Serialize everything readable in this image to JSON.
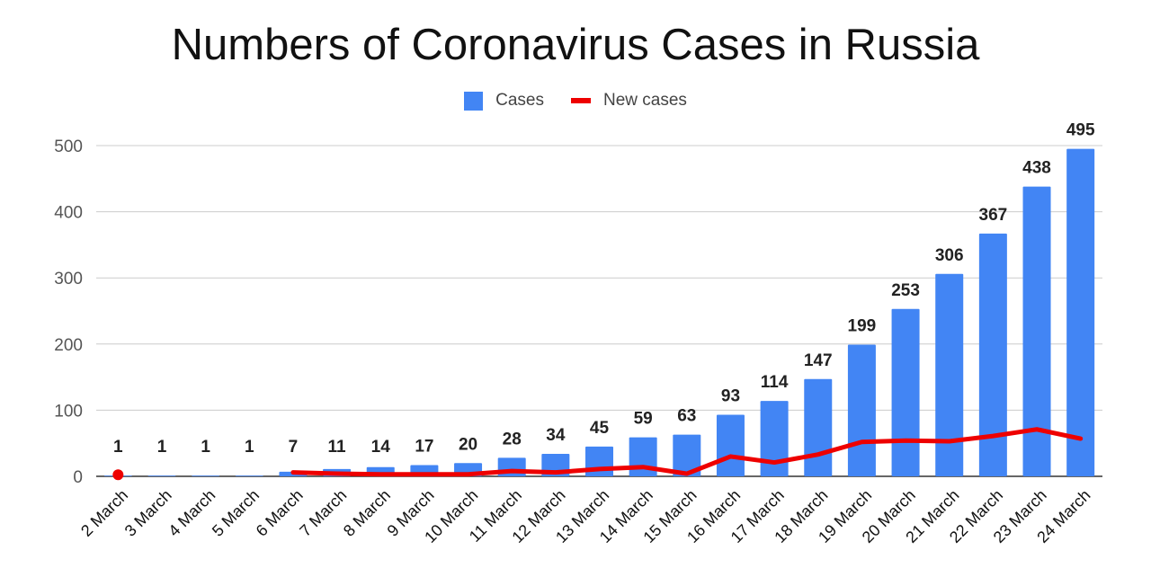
{
  "chart_data": {
    "type": "bar",
    "title": "Numbers of Coronavirus Cases in Russia",
    "categories": [
      "2 March",
      "3 March",
      "4 March",
      "5 March",
      "6 March",
      "7 March",
      "8 March",
      "9 March",
      "10 March",
      "11 March",
      "12 March",
      "13 March",
      "14 March",
      "15 March",
      "16 March",
      "17 March",
      "18 March",
      "19 March",
      "20 March",
      "21 March",
      "22 March",
      "23 March",
      "24 March"
    ],
    "series": [
      {
        "name": "Cases",
        "type": "bar",
        "color": "#4285f4",
        "values": [
          1,
          1,
          1,
          1,
          7,
          11,
          14,
          17,
          20,
          28,
          34,
          45,
          59,
          63,
          93,
          114,
          147,
          199,
          253,
          306,
          367,
          438,
          495
        ]
      },
      {
        "name": "New cases",
        "type": "line",
        "color": "#ee0000",
        "values": [
          1,
          null,
          null,
          null,
          6,
          4,
          3,
          3,
          3,
          8,
          6,
          11,
          14,
          4,
          30,
          21,
          33,
          52,
          54,
          53,
          61,
          71,
          57
        ]
      }
    ],
    "ylim": [
      0,
      500
    ],
    "yticks": [
      0,
      100,
      200,
      300,
      400,
      500
    ],
    "grid": true,
    "legend": "top-center",
    "data_labels": true
  }
}
